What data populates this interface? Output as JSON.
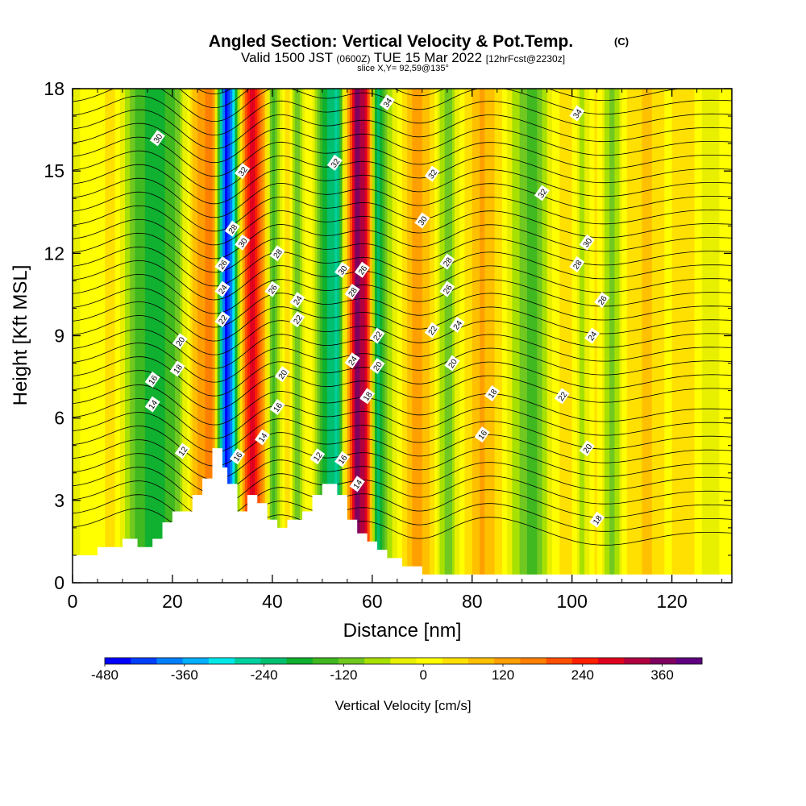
{
  "header": {
    "title": "Angled Section: Vertical Velocity & Pot.Temp.",
    "title_suffix": "(C)",
    "valid_prefix": "Valid 1500 JST",
    "valid_utc": "(0600Z)",
    "valid_date": "TUE 15 Mar 2022",
    "forecast": "[12hrFcst@2230z]",
    "slice": "slice X,Y= 92,59@135°"
  },
  "chart_data": {
    "type": "heatmap",
    "xlabel": "Distance [nm]",
    "ylabel": "Height [Kft MSL]",
    "xlim": [
      0,
      132
    ],
    "ylim": [
      0,
      18
    ],
    "x_ticks": [
      "0",
      "20",
      "40",
      "60",
      "80",
      "100",
      "120"
    ],
    "y_ticks": [
      "0",
      "3",
      "6",
      "9",
      "12",
      "15",
      "18"
    ],
    "colorbar": {
      "label": "Vertical Velocity [cm/s]",
      "tick_labels": [
        "-480",
        "-360",
        "-240",
        "-120",
        "0",
        "120",
        "240",
        "360"
      ],
      "tick_values": [
        -480,
        -360,
        -240,
        -120,
        0,
        120,
        240,
        360
      ],
      "min": -480,
      "max": 420,
      "colors": [
        "#0000ff",
        "#0040ff",
        "#0080ff",
        "#00b0ff",
        "#00e8e8",
        "#00d0a0",
        "#00c070",
        "#10b030",
        "#40b820",
        "#70c820",
        "#a8e000",
        "#e8f000",
        "#ffff00",
        "#ffe000",
        "#ffc000",
        "#ffa000",
        "#ff8000",
        "#ff5000",
        "#ff2000",
        "#e00020",
        "#b00040",
        "#800060",
        "#600080"
      ]
    },
    "velocity_bands": [
      {
        "x": 0,
        "w": -20
      },
      {
        "x": 8,
        "w": 40
      },
      {
        "x": 13,
        "w": -150
      },
      {
        "x": 17,
        "w": -200
      },
      {
        "x": 21,
        "w": -120
      },
      {
        "x": 25,
        "w": 120
      },
      {
        "x": 28,
        "w": 180
      },
      {
        "x": 30.5,
        "w": -460
      },
      {
        "x": 32,
        "w": -380
      },
      {
        "x": 34,
        "w": 120
      },
      {
        "x": 36,
        "w": 300
      },
      {
        "x": 38.5,
        "w": 100
      },
      {
        "x": 40,
        "w": -150
      },
      {
        "x": 43,
        "w": 60
      },
      {
        "x": 45,
        "w": -120
      },
      {
        "x": 47.5,
        "w": 40
      },
      {
        "x": 50,
        "w": -180
      },
      {
        "x": 53,
        "w": -260
      },
      {
        "x": 55,
        "w": 80
      },
      {
        "x": 57,
        "w": 380
      },
      {
        "x": 59,
        "w": 260
      },
      {
        "x": 61,
        "w": -240
      },
      {
        "x": 63,
        "w": -100
      },
      {
        "x": 66,
        "w": 40
      },
      {
        "x": 69,
        "w": 140
      },
      {
        "x": 72,
        "w": 60
      },
      {
        "x": 75,
        "w": -130
      },
      {
        "x": 78,
        "w": 20
      },
      {
        "x": 82,
        "w": 120
      },
      {
        "x": 86,
        "w": 30
      },
      {
        "x": 89,
        "w": -80
      },
      {
        "x": 92,
        "w": -160
      },
      {
        "x": 95,
        "w": -40
      },
      {
        "x": 99,
        "w": 60
      },
      {
        "x": 102,
        "w": -60
      },
      {
        "x": 105,
        "w": 40
      },
      {
        "x": 108,
        "w": -120
      },
      {
        "x": 111,
        "w": 30
      },
      {
        "x": 115,
        "w": 80
      },
      {
        "x": 119,
        "w": 20
      },
      {
        "x": 123,
        "w": 60
      },
      {
        "x": 127,
        "w": -40
      },
      {
        "x": 132,
        "w": 20
      }
    ],
    "terrain": [
      [
        0,
        1.0
      ],
      [
        5,
        1.0
      ],
      [
        5,
        1.3
      ],
      [
        10,
        1.3
      ],
      [
        10,
        1.6
      ],
      [
        13,
        1.6
      ],
      [
        13,
        1.3
      ],
      [
        16,
        1.3
      ],
      [
        16,
        1.6
      ],
      [
        18,
        1.6
      ],
      [
        18,
        2.2
      ],
      [
        20,
        2.2
      ],
      [
        20,
        2.6
      ],
      [
        24,
        2.6
      ],
      [
        24,
        3.2
      ],
      [
        26,
        3.2
      ],
      [
        26,
        3.8
      ],
      [
        28,
        3.8
      ],
      [
        28,
        4.9
      ],
      [
        30,
        4.9
      ],
      [
        30,
        4.2
      ],
      [
        31,
        4.2
      ],
      [
        31,
        3.6
      ],
      [
        33,
        3.6
      ],
      [
        33,
        2.6
      ],
      [
        35,
        2.6
      ],
      [
        35,
        3.2
      ],
      [
        37,
        3.2
      ],
      [
        37,
        2.9
      ],
      [
        39,
        2.9
      ],
      [
        39,
        2.3
      ],
      [
        41,
        2.3
      ],
      [
        41,
        2.0
      ],
      [
        43,
        2.0
      ],
      [
        43,
        2.3
      ],
      [
        46,
        2.3
      ],
      [
        46,
        2.6
      ],
      [
        48,
        2.6
      ],
      [
        48,
        3.2
      ],
      [
        50,
        3.2
      ],
      [
        50,
        3.6
      ],
      [
        53,
        3.6
      ],
      [
        53,
        3.2
      ],
      [
        55,
        3.2
      ],
      [
        55,
        2.3
      ],
      [
        57,
        2.3
      ],
      [
        57,
        1.8
      ],
      [
        59,
        1.8
      ],
      [
        59,
        1.5
      ],
      [
        61,
        1.5
      ],
      [
        61,
        1.2
      ],
      [
        63,
        1.2
      ],
      [
        63,
        0.9
      ],
      [
        66,
        0.9
      ],
      [
        66,
        0.6
      ],
      [
        70,
        0.6
      ],
      [
        70,
        0.3
      ],
      [
        132,
        0.3
      ]
    ],
    "contour_labels": [
      {
        "x": 17,
        "y": 16.2,
        "t": "30"
      },
      {
        "x": 34,
        "y": 15.0,
        "t": "32"
      },
      {
        "x": 32,
        "y": 12.9,
        "t": "28"
      },
      {
        "x": 34,
        "y": 12.4,
        "t": "30"
      },
      {
        "x": 41,
        "y": 12.0,
        "t": "28"
      },
      {
        "x": 30,
        "y": 11.6,
        "t": "26"
      },
      {
        "x": 30,
        "y": 10.7,
        "t": "24"
      },
      {
        "x": 40,
        "y": 10.7,
        "t": "26"
      },
      {
        "x": 45,
        "y": 10.3,
        "t": "24"
      },
      {
        "x": 30,
        "y": 9.6,
        "t": "22"
      },
      {
        "x": 45,
        "y": 9.6,
        "t": "22"
      },
      {
        "x": 21.5,
        "y": 8.8,
        "t": "20"
      },
      {
        "x": 21,
        "y": 7.8,
        "t": "18"
      },
      {
        "x": 16,
        "y": 7.4,
        "t": "16"
      },
      {
        "x": 16,
        "y": 6.5,
        "t": "14"
      },
      {
        "x": 42,
        "y": 7.6,
        "t": "20"
      },
      {
        "x": 41,
        "y": 6.4,
        "t": "16"
      },
      {
        "x": 38,
        "y": 5.3,
        "t": "14"
      },
      {
        "x": 22,
        "y": 4.8,
        "t": "12"
      },
      {
        "x": 33,
        "y": 4.6,
        "t": "16"
      },
      {
        "x": 49,
        "y": 4.6,
        "t": "12"
      },
      {
        "x": 54,
        "y": 4.5,
        "t": "16"
      },
      {
        "x": 57,
        "y": 3.6,
        "t": "14"
      },
      {
        "x": 63,
        "y": 17.5,
        "t": "34"
      },
      {
        "x": 52.5,
        "y": 15.3,
        "t": "32"
      },
      {
        "x": 72,
        "y": 14.9,
        "t": "32"
      },
      {
        "x": 94,
        "y": 14.2,
        "t": "32"
      },
      {
        "x": 101,
        "y": 17.1,
        "t": "34"
      },
      {
        "x": 70,
        "y": 13.2,
        "t": "30"
      },
      {
        "x": 54,
        "y": 11.4,
        "t": "30"
      },
      {
        "x": 58,
        "y": 11.4,
        "t": "26"
      },
      {
        "x": 56,
        "y": 10.6,
        "t": "28"
      },
      {
        "x": 75,
        "y": 11.7,
        "t": "28"
      },
      {
        "x": 75,
        "y": 10.7,
        "t": "26"
      },
      {
        "x": 103,
        "y": 12.4,
        "t": "30"
      },
      {
        "x": 101,
        "y": 11.6,
        "t": "28"
      },
      {
        "x": 106,
        "y": 10.3,
        "t": "26"
      },
      {
        "x": 77,
        "y": 9.4,
        "t": "24"
      },
      {
        "x": 104,
        "y": 9.0,
        "t": "24"
      },
      {
        "x": 61,
        "y": 9.0,
        "t": "22"
      },
      {
        "x": 72,
        "y": 9.2,
        "t": "22"
      },
      {
        "x": 56,
        "y": 8.1,
        "t": "24"
      },
      {
        "x": 61,
        "y": 7.9,
        "t": "20"
      },
      {
        "x": 76,
        "y": 8.0,
        "t": "20"
      },
      {
        "x": 59,
        "y": 6.8,
        "t": "18"
      },
      {
        "x": 84,
        "y": 6.9,
        "t": "18"
      },
      {
        "x": 98,
        "y": 6.8,
        "t": "22"
      },
      {
        "x": 82,
        "y": 5.4,
        "t": "16"
      },
      {
        "x": 103,
        "y": 4.9,
        "t": "20"
      },
      {
        "x": 105,
        "y": 2.3,
        "t": "18"
      }
    ]
  }
}
